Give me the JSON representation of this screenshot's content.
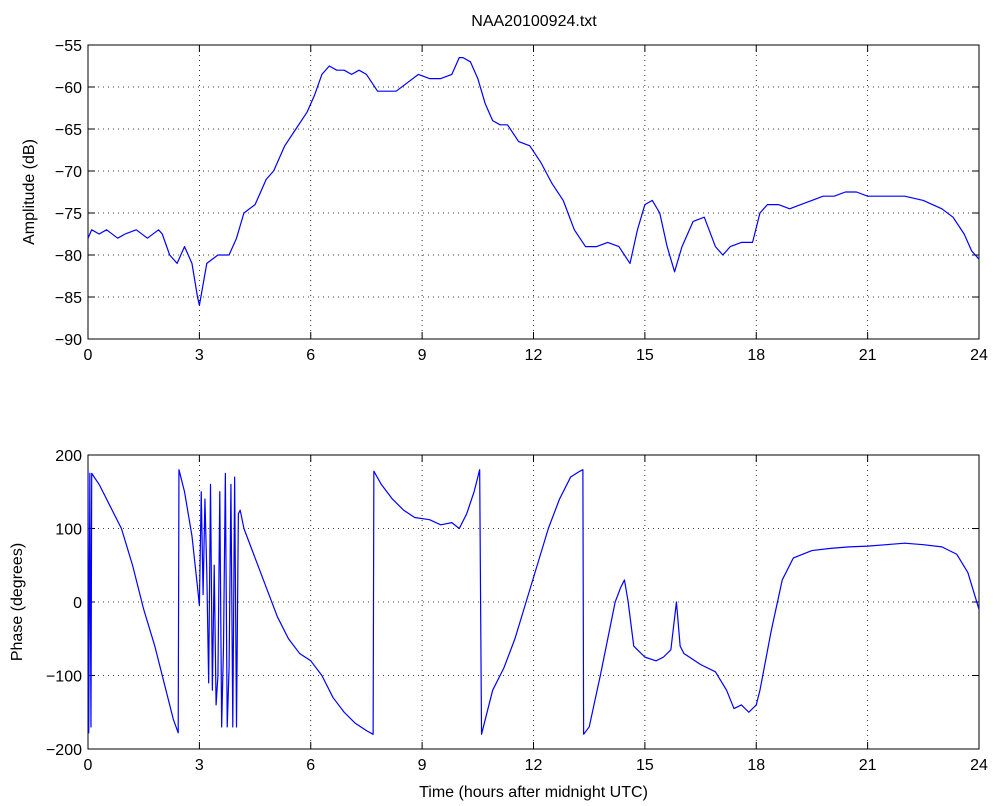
{
  "figure": {
    "title": "NAA20100924.txt"
  },
  "chart_data": [
    {
      "type": "line",
      "title": "NAA20100924.txt",
      "xlabel": "",
      "ylabel": "Amplitude (dB)",
      "xlim": [
        0,
        24
      ],
      "ylim": [
        -90,
        -55
      ],
      "xticks": [
        0,
        3,
        6,
        9,
        12,
        15,
        18,
        21,
        24
      ],
      "yticks": [
        -90,
        -85,
        -80,
        -75,
        -70,
        -65,
        -60,
        -55
      ],
      "xtick_labels": [
        "0",
        "3",
        "6",
        "9",
        "12",
        "15",
        "18",
        "21",
        "24"
      ],
      "ytick_labels": [
        "−90",
        "−85",
        "−80",
        "−75",
        "−70",
        "−65",
        "−60",
        "−55"
      ],
      "grid": true,
      "color": "#0000ff",
      "series": [
        {
          "x": [
            0,
            0.1,
            0.3,
            0.5,
            0.8,
            1.0,
            1.3,
            1.6,
            1.9,
            2.0,
            2.2,
            2.4,
            2.6,
            2.8,
            2.95,
            3.0,
            3.2,
            3.5,
            3.8,
            4.0,
            4.2,
            4.5,
            4.8,
            5.0,
            5.3,
            5.6,
            5.9,
            6.1,
            6.3,
            6.5,
            6.7,
            6.9,
            7.1,
            7.3,
            7.5,
            7.8,
            8.0,
            8.3,
            8.6,
            8.9,
            9.2,
            9.5,
            9.8,
            10.0,
            10.1,
            10.3,
            10.5,
            10.7,
            10.9,
            11.1,
            11.3,
            11.6,
            11.9,
            12.2,
            12.5,
            12.8,
            13.1,
            13.4,
            13.7,
            14.0,
            14.3,
            14.6,
            14.8,
            15.0,
            15.2,
            15.4,
            15.6,
            15.8,
            16.0,
            16.3,
            16.6,
            16.9,
            17.1,
            17.3,
            17.6,
            17.9,
            18.1,
            18.3,
            18.6,
            18.9,
            19.2,
            19.5,
            19.8,
            20.1,
            20.4,
            20.7,
            21.0,
            21.5,
            22.0,
            22.5,
            23.0,
            23.3,
            23.6,
            23.8,
            24.0
          ],
          "y": [
            -78,
            -77,
            -77.5,
            -77,
            -78,
            -77.5,
            -77,
            -78,
            -77,
            -77.5,
            -80,
            -81,
            -79,
            -81,
            -85,
            -86,
            -81,
            -80,
            -80,
            -78,
            -75,
            -74,
            -71,
            -70,
            -67,
            -65,
            -63,
            -61,
            -58.5,
            -57.5,
            -58,
            -58,
            -58.5,
            -58,
            -58.5,
            -60.5,
            -60.5,
            -60.5,
            -59.5,
            -58.5,
            -59,
            -59,
            -58.5,
            -56.5,
            -56.5,
            -57,
            -59,
            -62,
            -64,
            -64.5,
            -64.5,
            -66.5,
            -67,
            -69,
            -71.5,
            -73.5,
            -77,
            -79,
            -79,
            -78.5,
            -79,
            -81,
            -77,
            -74,
            -73.5,
            -75,
            -79,
            -82,
            -79,
            -76,
            -75.5,
            -79,
            -80,
            -79,
            -78.5,
            -78.5,
            -75,
            -74,
            -74,
            -74.5,
            -74,
            -73.5,
            -73,
            -73,
            -72.5,
            -72.5,
            -73,
            -73,
            -73,
            -73.5,
            -74.5,
            -75.5,
            -77.5,
            -79.5,
            -80.5
          ]
        }
      ]
    },
    {
      "type": "line",
      "title": "",
      "xlabel": "Time (hours after midnight UTC)",
      "ylabel": "Phase (degrees)",
      "xlim": [
        0,
        24
      ],
      "ylim": [
        -200,
        200
      ],
      "xticks": [
        0,
        3,
        6,
        9,
        12,
        15,
        18,
        21,
        24
      ],
      "yticks": [
        -200,
        -100,
        0,
        100,
        200
      ],
      "xtick_labels": [
        "0",
        "3",
        "6",
        "9",
        "12",
        "15",
        "18",
        "21",
        "24"
      ],
      "ytick_labels": [
        "−200",
        "−100",
        "0",
        "100",
        "200"
      ],
      "grid": true,
      "color": "#0000ff",
      "series": [
        {
          "x": [
            0,
            0.02,
            0.05,
            0.08,
            0.1,
            0.3,
            0.6,
            0.9,
            1.2,
            1.5,
            1.8,
            2.1,
            2.3,
            2.43,
            2.45,
            2.6,
            2.8,
            2.95,
            3.0,
            3.05,
            3.1,
            3.15,
            3.2,
            3.25,
            3.3,
            3.35,
            3.4,
            3.45,
            3.5,
            3.55,
            3.6,
            3.65,
            3.7,
            3.75,
            3.8,
            3.85,
            3.9,
            3.95,
            4.0,
            4.05,
            4.1,
            4.2,
            4.5,
            4.8,
            5.1,
            5.4,
            5.7,
            6.0,
            6.3,
            6.6,
            6.9,
            7.2,
            7.5,
            7.68,
            7.7,
            7.9,
            8.2,
            8.5,
            8.8,
            9.2,
            9.5,
            9.8,
            10.0,
            10.2,
            10.4,
            10.55,
            10.6,
            10.65,
            10.9,
            11.2,
            11.5,
            11.8,
            12.1,
            12.4,
            12.7,
            13.0,
            13.25,
            13.33,
            13.35,
            13.5,
            13.8,
            14.0,
            14.2,
            14.35,
            14.45,
            14.55,
            14.7,
            15.0,
            15.3,
            15.5,
            15.7,
            15.85,
            15.95,
            16.05,
            16.2,
            16.5,
            16.9,
            17.2,
            17.4,
            17.6,
            17.8,
            18.0,
            18.1,
            18.4,
            18.7,
            19.0,
            19.5,
            20.0,
            20.5,
            21.0,
            21.5,
            22.0,
            22.5,
            23.0,
            23.4,
            23.7,
            24.0
          ],
          "y": [
            180,
            -178,
            175,
            -170,
            175,
            160,
            130,
            100,
            50,
            -10,
            -60,
            -120,
            -160,
            -178,
            180,
            150,
            90,
            20,
            -5,
            150,
            10,
            140,
            40,
            -110,
            160,
            -120,
            50,
            -140,
            -100,
            150,
            -170,
            -60,
            175,
            -170,
            -90,
            160,
            -170,
            170,
            -170,
            120,
            125,
            100,
            60,
            20,
            -20,
            -50,
            -70,
            -80,
            -100,
            -130,
            -150,
            -165,
            -175,
            -180,
            178,
            160,
            140,
            125,
            115,
            112,
            105,
            108,
            100,
            120,
            150,
            180,
            -180,
            -170,
            -120,
            -90,
            -50,
            0,
            50,
            100,
            140,
            170,
            178,
            180,
            -180,
            -170,
            -100,
            -50,
            0,
            20,
            30,
            0,
            -60,
            -75,
            -80,
            -75,
            -65,
            0,
            -60,
            -70,
            -75,
            -85,
            -95,
            -120,
            -145,
            -140,
            -150,
            -140,
            -120,
            -40,
            30,
            60,
            70,
            73,
            75,
            76,
            78,
            80,
            78,
            75,
            65,
            40,
            -10
          ]
        }
      ]
    }
  ]
}
